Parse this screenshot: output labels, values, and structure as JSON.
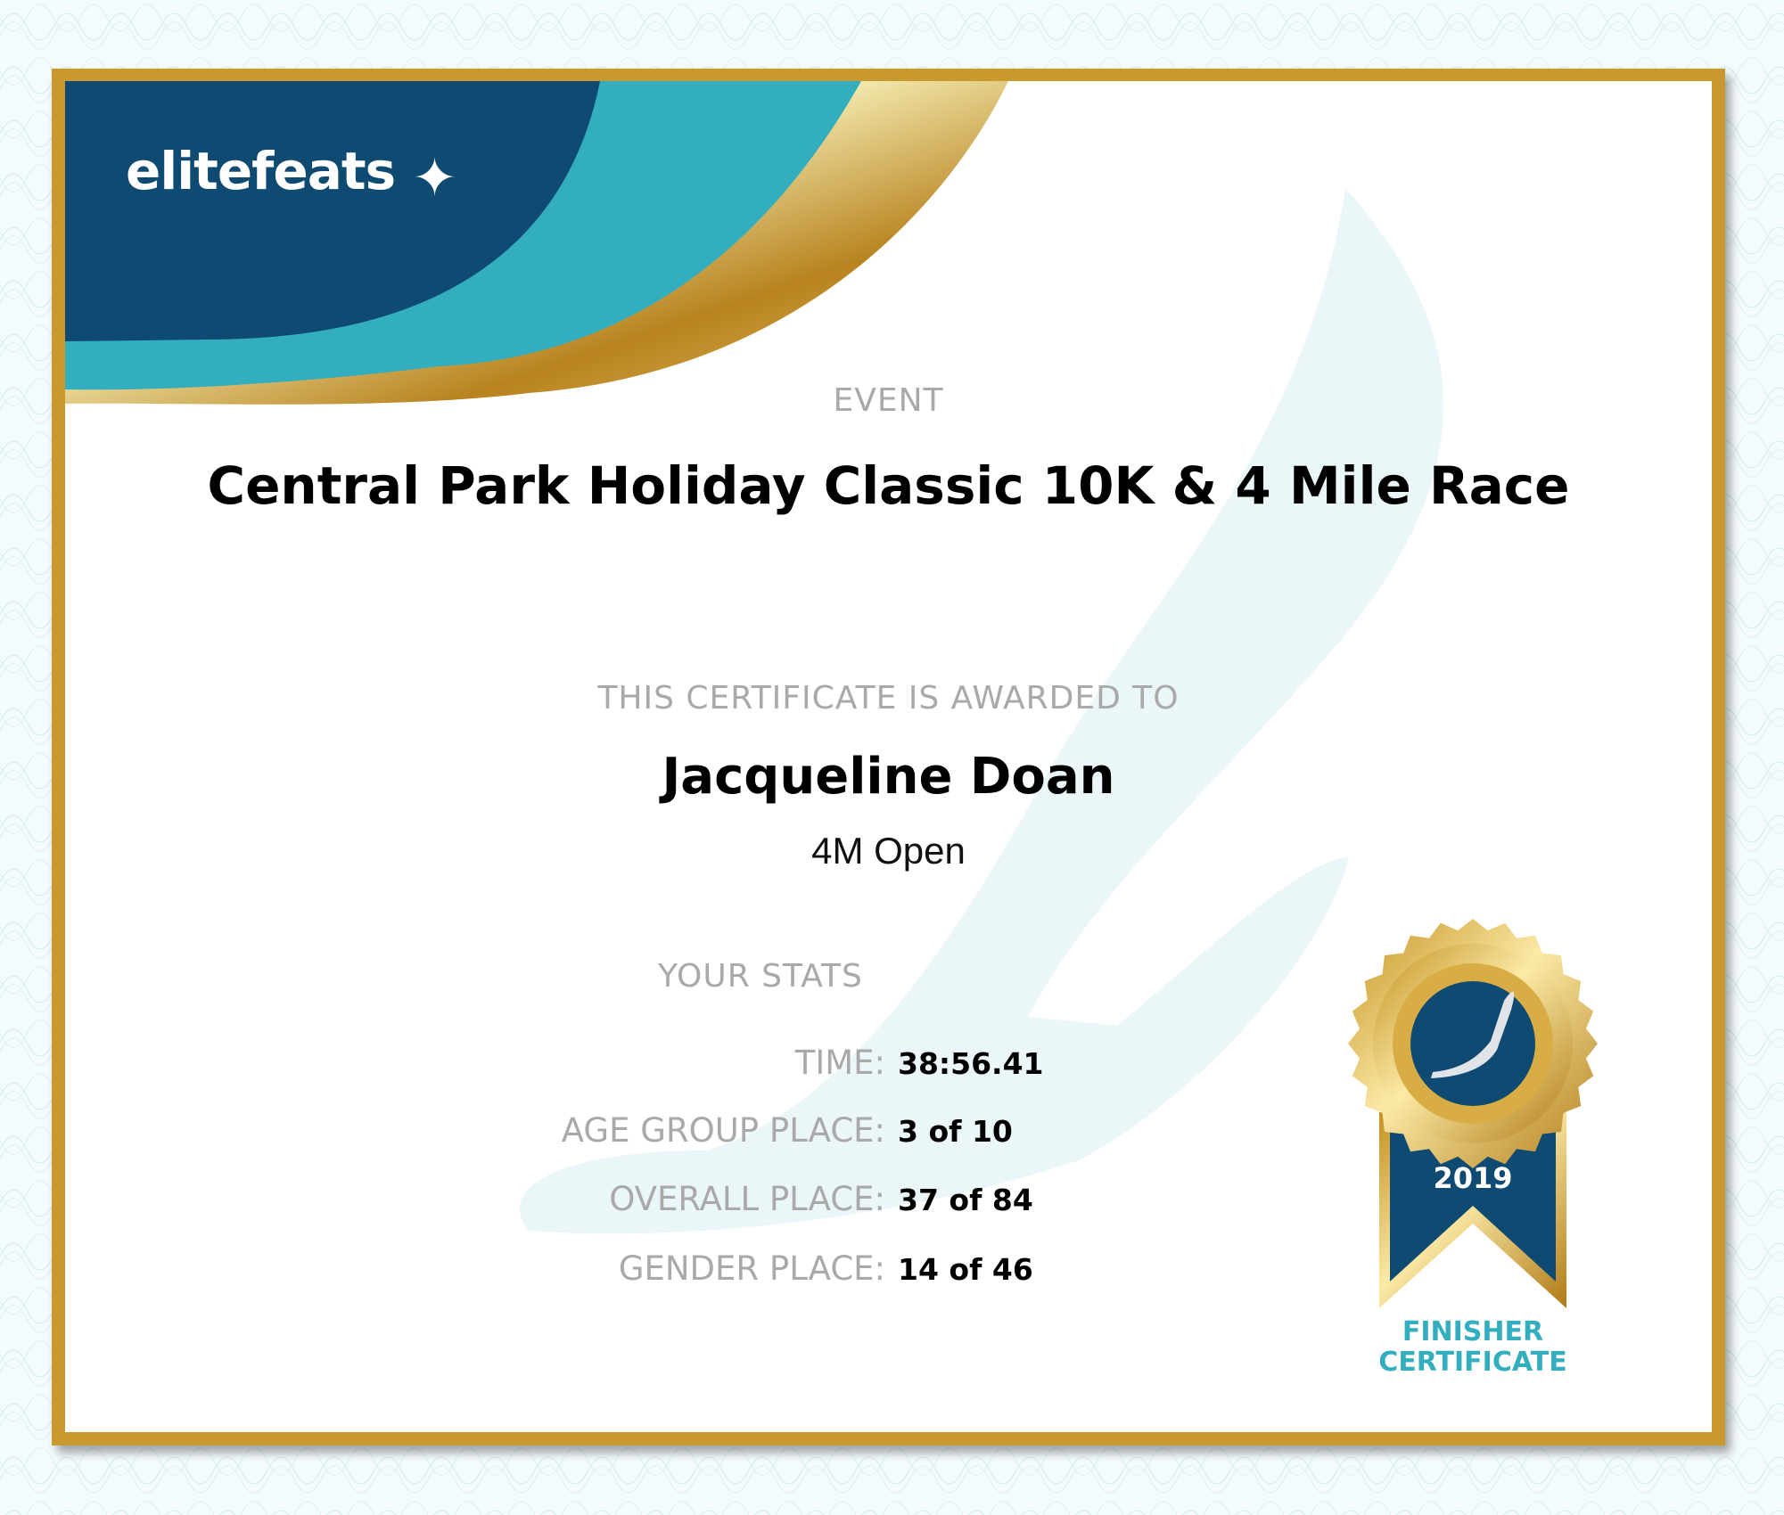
{
  "brand": {
    "logo_text": "elitefeats",
    "colors": {
      "navy": "#0f4a73",
      "teal": "#33aebf",
      "gold": "#c9992f"
    }
  },
  "event": {
    "label": "EVENT",
    "title": "Central Park Holiday Classic 10K & 4 Mile Race"
  },
  "award": {
    "label": "THIS CERTIFICATE IS AWARDED TO",
    "name": "Jacqueline Doan",
    "division": "4M Open"
  },
  "stats": {
    "label": "YOUR STATS",
    "rows": [
      {
        "label": "TIME:",
        "value": "38:56.41"
      },
      {
        "label": "AGE GROUP PLACE:",
        "value": "3 of 10"
      },
      {
        "label": "OVERALL PLACE:",
        "value": "37 of 84"
      },
      {
        "label": "GENDER PLACE:",
        "value": "14 of 46"
      }
    ]
  },
  "badge": {
    "year": "2019",
    "line1": "FINISHER",
    "line2": "CERTIFICATE",
    "icon": "winged-foot-icon"
  }
}
